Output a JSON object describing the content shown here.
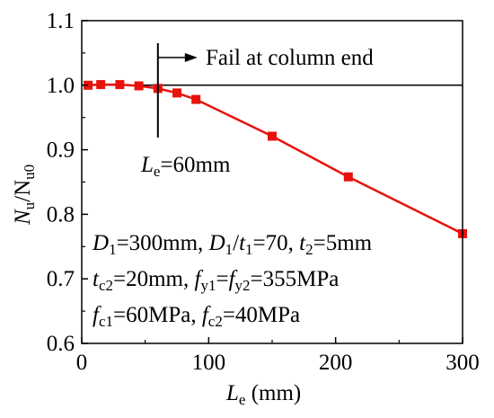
{
  "chart_data": {
    "type": "line",
    "x": [
      5,
      15,
      30,
      45,
      60,
      75,
      90,
      150,
      210,
      300
    ],
    "y": [
      1.0,
      1.001,
      1.001,
      0.999,
      0.995,
      0.988,
      0.978,
      0.921,
      0.858,
      0.77
    ],
    "xlim": [
      0,
      300
    ],
    "ylim": [
      0.6,
      1.1
    ],
    "x_ticks": [
      "0",
      "100",
      "200",
      "300"
    ],
    "y_ticks": [
      "0.6",
      "0.7",
      "0.8",
      "0.9",
      "1.0",
      "1.1"
    ],
    "reference_y": 1.0,
    "marker_x": 60,
    "series_color": "#e8120c",
    "xlabel": {
      "main": "L",
      "sub": "e",
      "rest": " (mm)"
    },
    "ylabel": {
      "a": "N",
      "a_sub": "u",
      "slash": "/N",
      "b_sub": "u0"
    },
    "annotations": {
      "fail_text": "Fail at column end",
      "le_value": {
        "main": "L",
        "sub": "e",
        "rest": "=60mm"
      },
      "params": [
        [
          {
            "t": "D",
            "i": true
          },
          {
            "t": "1",
            "s": true
          },
          {
            "t": "=300mm, "
          },
          {
            "t": "D",
            "i": true
          },
          {
            "t": "1",
            "s": true
          },
          {
            "t": "/"
          },
          {
            "t": "t",
            "i": true
          },
          {
            "t": "1",
            "s": true
          },
          {
            "t": "=70, "
          },
          {
            "t": "t",
            "i": true
          },
          {
            "t": "2",
            "s": true
          },
          {
            "t": "=5mm"
          }
        ],
        [
          {
            "t": "t",
            "i": true
          },
          {
            "t": "c2",
            "s": true
          },
          {
            "t": "=20mm, "
          },
          {
            "t": "f",
            "i": true
          },
          {
            "t": "y1",
            "s": true
          },
          {
            "t": "="
          },
          {
            "t": "f",
            "i": true
          },
          {
            "t": "y2",
            "s": true
          },
          {
            "t": "=355MPa"
          }
        ],
        [
          {
            "t": "f",
            "i": true
          },
          {
            "t": "c1",
            "s": true
          },
          {
            "t": "=60MPa, "
          },
          {
            "t": "f",
            "i": true
          },
          {
            "t": "c2",
            "s": true
          },
          {
            "t": "=40MPa"
          }
        ]
      ]
    }
  }
}
